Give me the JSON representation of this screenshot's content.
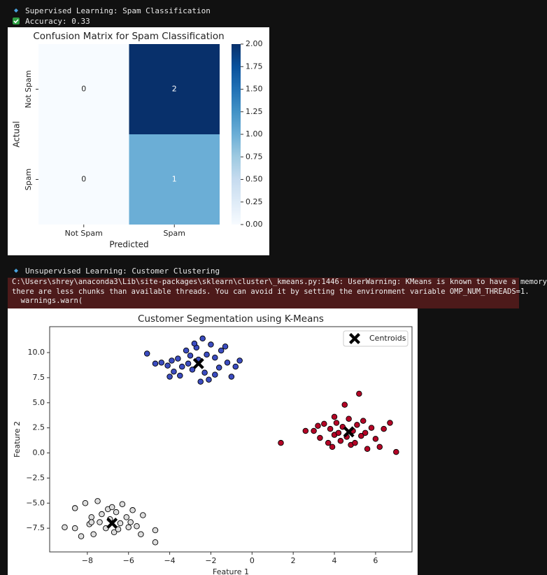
{
  "output": {
    "line1": "Supervised Learning: Spam Classification",
    "line2": "Accuracy: 0.33",
    "line3": "Unsupervised Learning: Customer Clustering",
    "warning": [
      "C:\\Users\\shrey\\anaconda3\\Lib\\site-packages\\sklearn\\cluster\\_kmeans.py:1446: UserWarning: KMeans is known to have a memory",
      "there are less chunks than available threads. You can avoid it by setting the environment variable OMP_NUM_THREADS=1.",
      "  warnings.warn("
    ]
  },
  "chart_data": [
    {
      "type": "heatmap",
      "title": "Confusion Matrix for Spam Classification",
      "x_label": "Predicted",
      "y_label": "Actual",
      "x_categories": [
        "Not Spam",
        "Spam"
      ],
      "y_categories": [
        "Not Spam",
        "Spam"
      ],
      "values": [
        [
          0,
          2
        ],
        [
          0,
          1
        ]
      ],
      "colormap": [
        "#f7fbff",
        "#deebf7",
        "#c6dbef",
        "#9ecae1",
        "#6baed6",
        "#4292c6",
        "#2171b5",
        "#08519c",
        "#08306b"
      ],
      "clim": [
        0,
        2
      ],
      "colorbar_ticks": [
        {
          "value": 0,
          "label": "0.00"
        },
        {
          "value": 0.25,
          "label": "0.25"
        },
        {
          "value": 0.5,
          "label": "0.50"
        },
        {
          "value": 0.75,
          "label": "0.75"
        },
        {
          "value": 1,
          "label": "1.00"
        },
        {
          "value": 1.25,
          "label": "1.25"
        },
        {
          "value": 1.5,
          "label": "1.50"
        },
        {
          "value": 1.75,
          "label": "1.75"
        },
        {
          "value": 2,
          "label": "2.00"
        }
      ]
    },
    {
      "type": "scatter",
      "title": "Customer Segmentation using K-Means",
      "x_label": "Feature 1",
      "y_label": "Feature 2",
      "xlim": [
        -9.83,
        7.77
      ],
      "ylim": [
        -9.86,
        12.58
      ],
      "xticks": [
        {
          "value": -8,
          "label": "−8"
        },
        {
          "value": -6,
          "label": "−6"
        },
        {
          "value": -4,
          "label": "−4"
        },
        {
          "value": -2,
          "label": "−2"
        },
        0,
        2,
        4,
        6
      ],
      "yticks": [
        {
          "value": -7.5,
          "label": "−7.5"
        },
        {
          "value": -5,
          "label": "−5.0"
        },
        {
          "value": -2.5,
          "label": "−2.5"
        },
        {
          "value": 0,
          "label": "0.0"
        },
        {
          "value": 2.5,
          "label": "2.5"
        },
        {
          "value": 5,
          "label": "5.0"
        },
        {
          "value": 7.5,
          "label": "7.5"
        },
        {
          "value": 10,
          "label": "10.0"
        }
      ],
      "legend": "upper right",
      "series": [
        {
          "color": "#3b4cc0",
          "marker": "o",
          "x": [
            -5.1,
            -4.4,
            -4.1,
            -3.9,
            -3.6,
            -3.4,
            -3.2,
            -3.0,
            -2.9,
            -2.7,
            -2.6,
            -2.4,
            -2.3,
            -2.2,
            -2.0,
            -1.8,
            -1.6,
            -1.5,
            -1.2,
            -1.0,
            -0.6,
            -0.8,
            -2.5,
            -3.5,
            -3.8,
            -4.7,
            -1.8,
            -2.8,
            -1.3,
            -3.1,
            -2.1,
            -4.0
          ],
          "y": [
            9.9,
            9.0,
            8.7,
            9.2,
            9.4,
            8.6,
            10.2,
            9.7,
            8.3,
            10.5,
            9.3,
            11.4,
            8.0,
            9.8,
            10.8,
            9.5,
            8.5,
            10.2,
            9.0,
            7.6,
            9.2,
            8.6,
            7.1,
            7.7,
            8.1,
            8.9,
            7.8,
            10.9,
            10.6,
            8.9,
            7.3,
            7.6
          ]
        },
        {
          "color": "#b40426",
          "marker": "o",
          "x": [
            1.4,
            2.6,
            3.0,
            3.3,
            3.5,
            3.7,
            3.8,
            3.9,
            4.0,
            4.1,
            4.2,
            4.3,
            4.4,
            4.5,
            4.6,
            4.7,
            4.8,
            4.9,
            5.0,
            5.1,
            5.2,
            5.3,
            5.4,
            5.6,
            5.8,
            6.0,
            6.2,
            6.4,
            6.7,
            7.0,
            3.2,
            4.0,
            5.5
          ],
          "y": [
            1.0,
            2.2,
            2.2,
            1.5,
            2.9,
            1.0,
            2.4,
            0.6,
            1.8,
            3.0,
            2.0,
            1.2,
            2.6,
            4.8,
            1.6,
            3.4,
            0.8,
            2.2,
            1.0,
            2.8,
            5.9,
            1.7,
            3.2,
            0.4,
            2.5,
            1.4,
            0.6,
            2.4,
            3.0,
            0.1,
            2.7,
            3.6,
            2.0
          ]
        },
        {
          "color": "#dddddd",
          "marker": "o",
          "x": [
            -9.1,
            -8.6,
            -8.6,
            -8.3,
            -8.1,
            -7.9,
            -7.8,
            -7.7,
            -7.5,
            -7.4,
            -7.3,
            -7.1,
            -7.0,
            -6.9,
            -6.7,
            -6.6,
            -6.4,
            -6.3,
            -6.1,
            -6.0,
            -5.9,
            -5.8,
            -5.6,
            -5.4,
            -5.3,
            -4.7,
            -4.7,
            -6.5,
            -6.8,
            -7.8
          ],
          "y": [
            -7.4,
            -5.5,
            -7.5,
            -8.3,
            -5.0,
            -7.1,
            -6.4,
            -8.1,
            -4.8,
            -6.9,
            -6.1,
            -7.5,
            -5.6,
            -6.6,
            -7.9,
            -5.9,
            -7.0,
            -5.1,
            -6.4,
            -7.4,
            -6.9,
            -5.7,
            -7.3,
            -8.1,
            -6.2,
            -7.7,
            -8.9,
            -7.6,
            -5.4,
            -6.9
          ]
        },
        {
          "name": "Centroids",
          "color": "#000000",
          "marker": "X",
          "x": [
            -2.6,
            4.7,
            -6.8
          ],
          "y": [
            8.9,
            2.1,
            -7.0
          ]
        }
      ]
    }
  ]
}
